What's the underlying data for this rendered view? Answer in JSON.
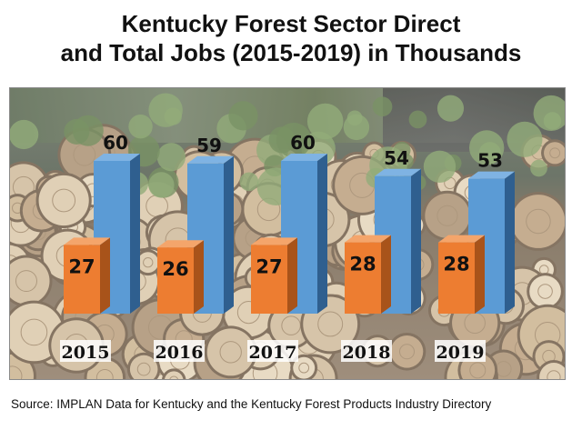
{
  "chart_data": {
    "type": "bar",
    "title_lines": [
      "Kentucky Forest Sector Direct",
      "and Total Jobs (2015-2019) in Thousands"
    ],
    "categories": [
      "2015",
      "2016",
      "2017",
      "2018",
      "2019"
    ],
    "series": [
      {
        "values": [
          60,
          59,
          60,
          54,
          53
        ],
        "color": "#5b9bd5"
      },
      {
        "values": [
          27,
          26,
          27,
          28,
          28
        ],
        "color": "#ed7d31"
      }
    ],
    "ylim": [
      0,
      70
    ],
    "grid": false,
    "legend": "none"
  },
  "source": "Source: IMPLAN Data for Kentucky and the Kentucky Forest Products Industry Directory"
}
